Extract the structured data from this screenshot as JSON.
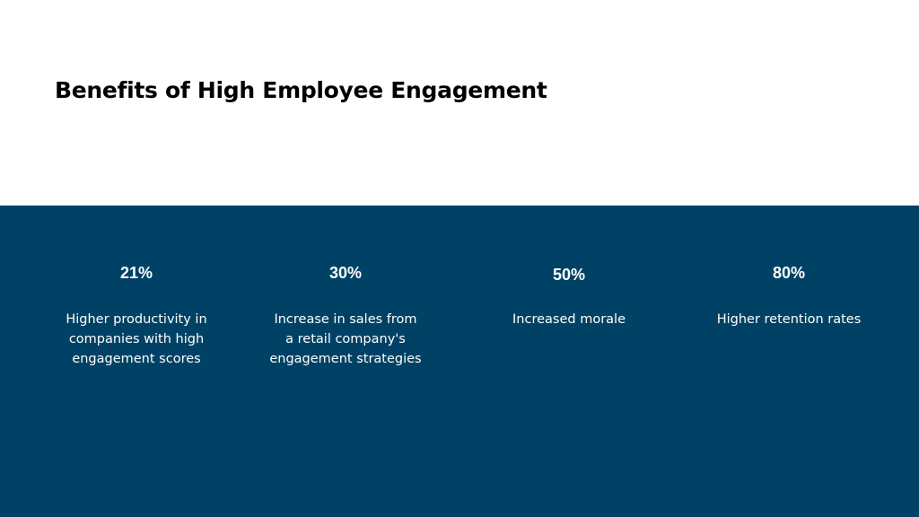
{
  "slide": {
    "title": "Benefits of High Employee Engagement",
    "colors": {
      "band": "#004265",
      "text_on_band": "#ffffff",
      "title": "#000000",
      "background": "#ffffff"
    },
    "stats": [
      {
        "value": "21%",
        "lines": [
          "Higher productivity in",
          "companies with high",
          "engagement scores"
        ]
      },
      {
        "value": "30%",
        "lines": [
          "Increase in sales from",
          "a retail company's",
          "engagement strategies"
        ]
      },
      {
        "value": "50%",
        "lines": [
          "Increased morale"
        ]
      },
      {
        "value": "80%",
        "lines": [
          "Higher retention rates"
        ]
      }
    ]
  }
}
